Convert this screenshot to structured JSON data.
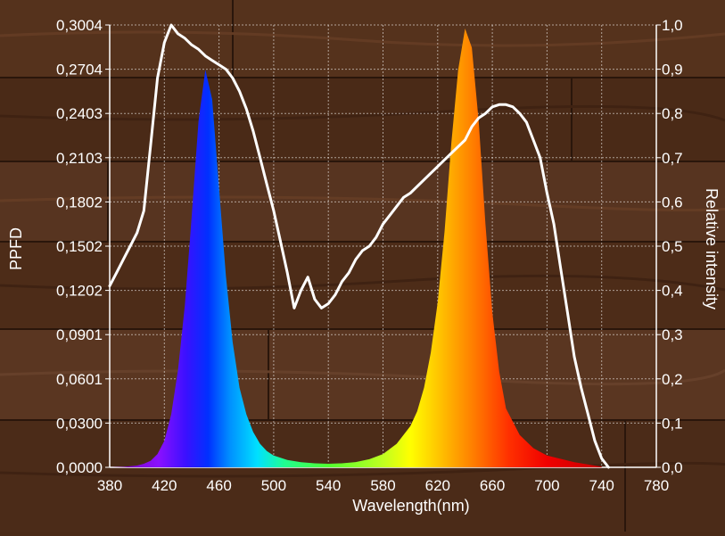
{
  "chart_data": {
    "type": "line",
    "xlabel": "Wavelength(nm)",
    "ylabel_left": "PPFD",
    "ylabel_right": "Relative intensity",
    "x_ticks": [
      "380",
      "420",
      "460",
      "500",
      "540",
      "580",
      "620",
      "660",
      "700",
      "740",
      "780"
    ],
    "x_range": [
      380,
      780
    ],
    "y_left_ticks": [
      "0,0000",
      "0,0300",
      "0,0601",
      "0,0901",
      "0,1202",
      "0,1502",
      "0,1802",
      "0,2103",
      "0,2403",
      "0,2704",
      "0,3004"
    ],
    "y_left_range": [
      0,
      0.3004
    ],
    "y_right_ticks": [
      "0,0",
      "0,1",
      "0,2",
      "0,3",
      "0,4",
      "0,5",
      "0,6",
      "0,7",
      "0,8",
      "0,9",
      "1,0"
    ],
    "y_right_range": [
      0,
      1.0
    ],
    "grid": true,
    "series": [
      {
        "style": "filled spectrum",
        "axis": "left",
        "x": [
          380,
          390,
          400,
          405,
          410,
          415,
          420,
          425,
          430,
          435,
          440,
          445,
          450,
          455,
          460,
          465,
          470,
          475,
          480,
          485,
          490,
          495,
          500,
          510,
          520,
          530,
          540,
          550,
          560,
          570,
          580,
          590,
          600,
          605,
          610,
          615,
          620,
          625,
          630,
          635,
          640,
          645,
          650,
          655,
          660,
          665,
          670,
          680,
          690,
          700,
          720,
          740
        ],
        "y": [
          0.0,
          0.0003,
          0.0012,
          0.0024,
          0.0045,
          0.009,
          0.018,
          0.036,
          0.066,
          0.11,
          0.17,
          0.235,
          0.27,
          0.25,
          0.19,
          0.13,
          0.085,
          0.054,
          0.036,
          0.024,
          0.016,
          0.011,
          0.008,
          0.005,
          0.0035,
          0.0027,
          0.0024,
          0.0027,
          0.0036,
          0.0055,
          0.009,
          0.016,
          0.028,
          0.038,
          0.054,
          0.078,
          0.112,
          0.16,
          0.22,
          0.27,
          0.298,
          0.285,
          0.235,
          0.165,
          0.105,
          0.065,
          0.04,
          0.022,
          0.013,
          0.008,
          0.0035,
          0.0005
        ]
      },
      {
        "style": "white line",
        "axis": "right",
        "x": [
          380,
          385,
          390,
          395,
          400,
          405,
          410,
          415,
          420,
          425,
          430,
          435,
          440,
          445,
          450,
          455,
          460,
          465,
          470,
          475,
          480,
          485,
          490,
          495,
          500,
          505,
          510,
          515,
          520,
          525,
          530,
          535,
          540,
          545,
          550,
          555,
          560,
          565,
          570,
          575,
          580,
          585,
          590,
          595,
          600,
          610,
          620,
          630,
          640,
          645,
          650,
          655,
          660,
          665,
          670,
          675,
          680,
          685,
          690,
          695,
          700,
          705,
          710,
          715,
          720,
          725,
          730,
          735,
          740,
          745
        ],
        "y": [
          0.41,
          0.44,
          0.47,
          0.5,
          0.53,
          0.58,
          0.73,
          0.88,
          0.96,
          1.0,
          0.98,
          0.97,
          0.955,
          0.945,
          0.93,
          0.92,
          0.91,
          0.9,
          0.88,
          0.85,
          0.81,
          0.76,
          0.7,
          0.64,
          0.58,
          0.51,
          0.44,
          0.36,
          0.4,
          0.43,
          0.38,
          0.36,
          0.37,
          0.39,
          0.42,
          0.44,
          0.47,
          0.49,
          0.5,
          0.52,
          0.55,
          0.57,
          0.59,
          0.61,
          0.62,
          0.65,
          0.68,
          0.71,
          0.74,
          0.77,
          0.79,
          0.8,
          0.815,
          0.82,
          0.82,
          0.815,
          0.8,
          0.78,
          0.74,
          0.7,
          0.62,
          0.55,
          0.45,
          0.35,
          0.25,
          0.18,
          0.12,
          0.06,
          0.02,
          0.0
        ]
      }
    ]
  }
}
